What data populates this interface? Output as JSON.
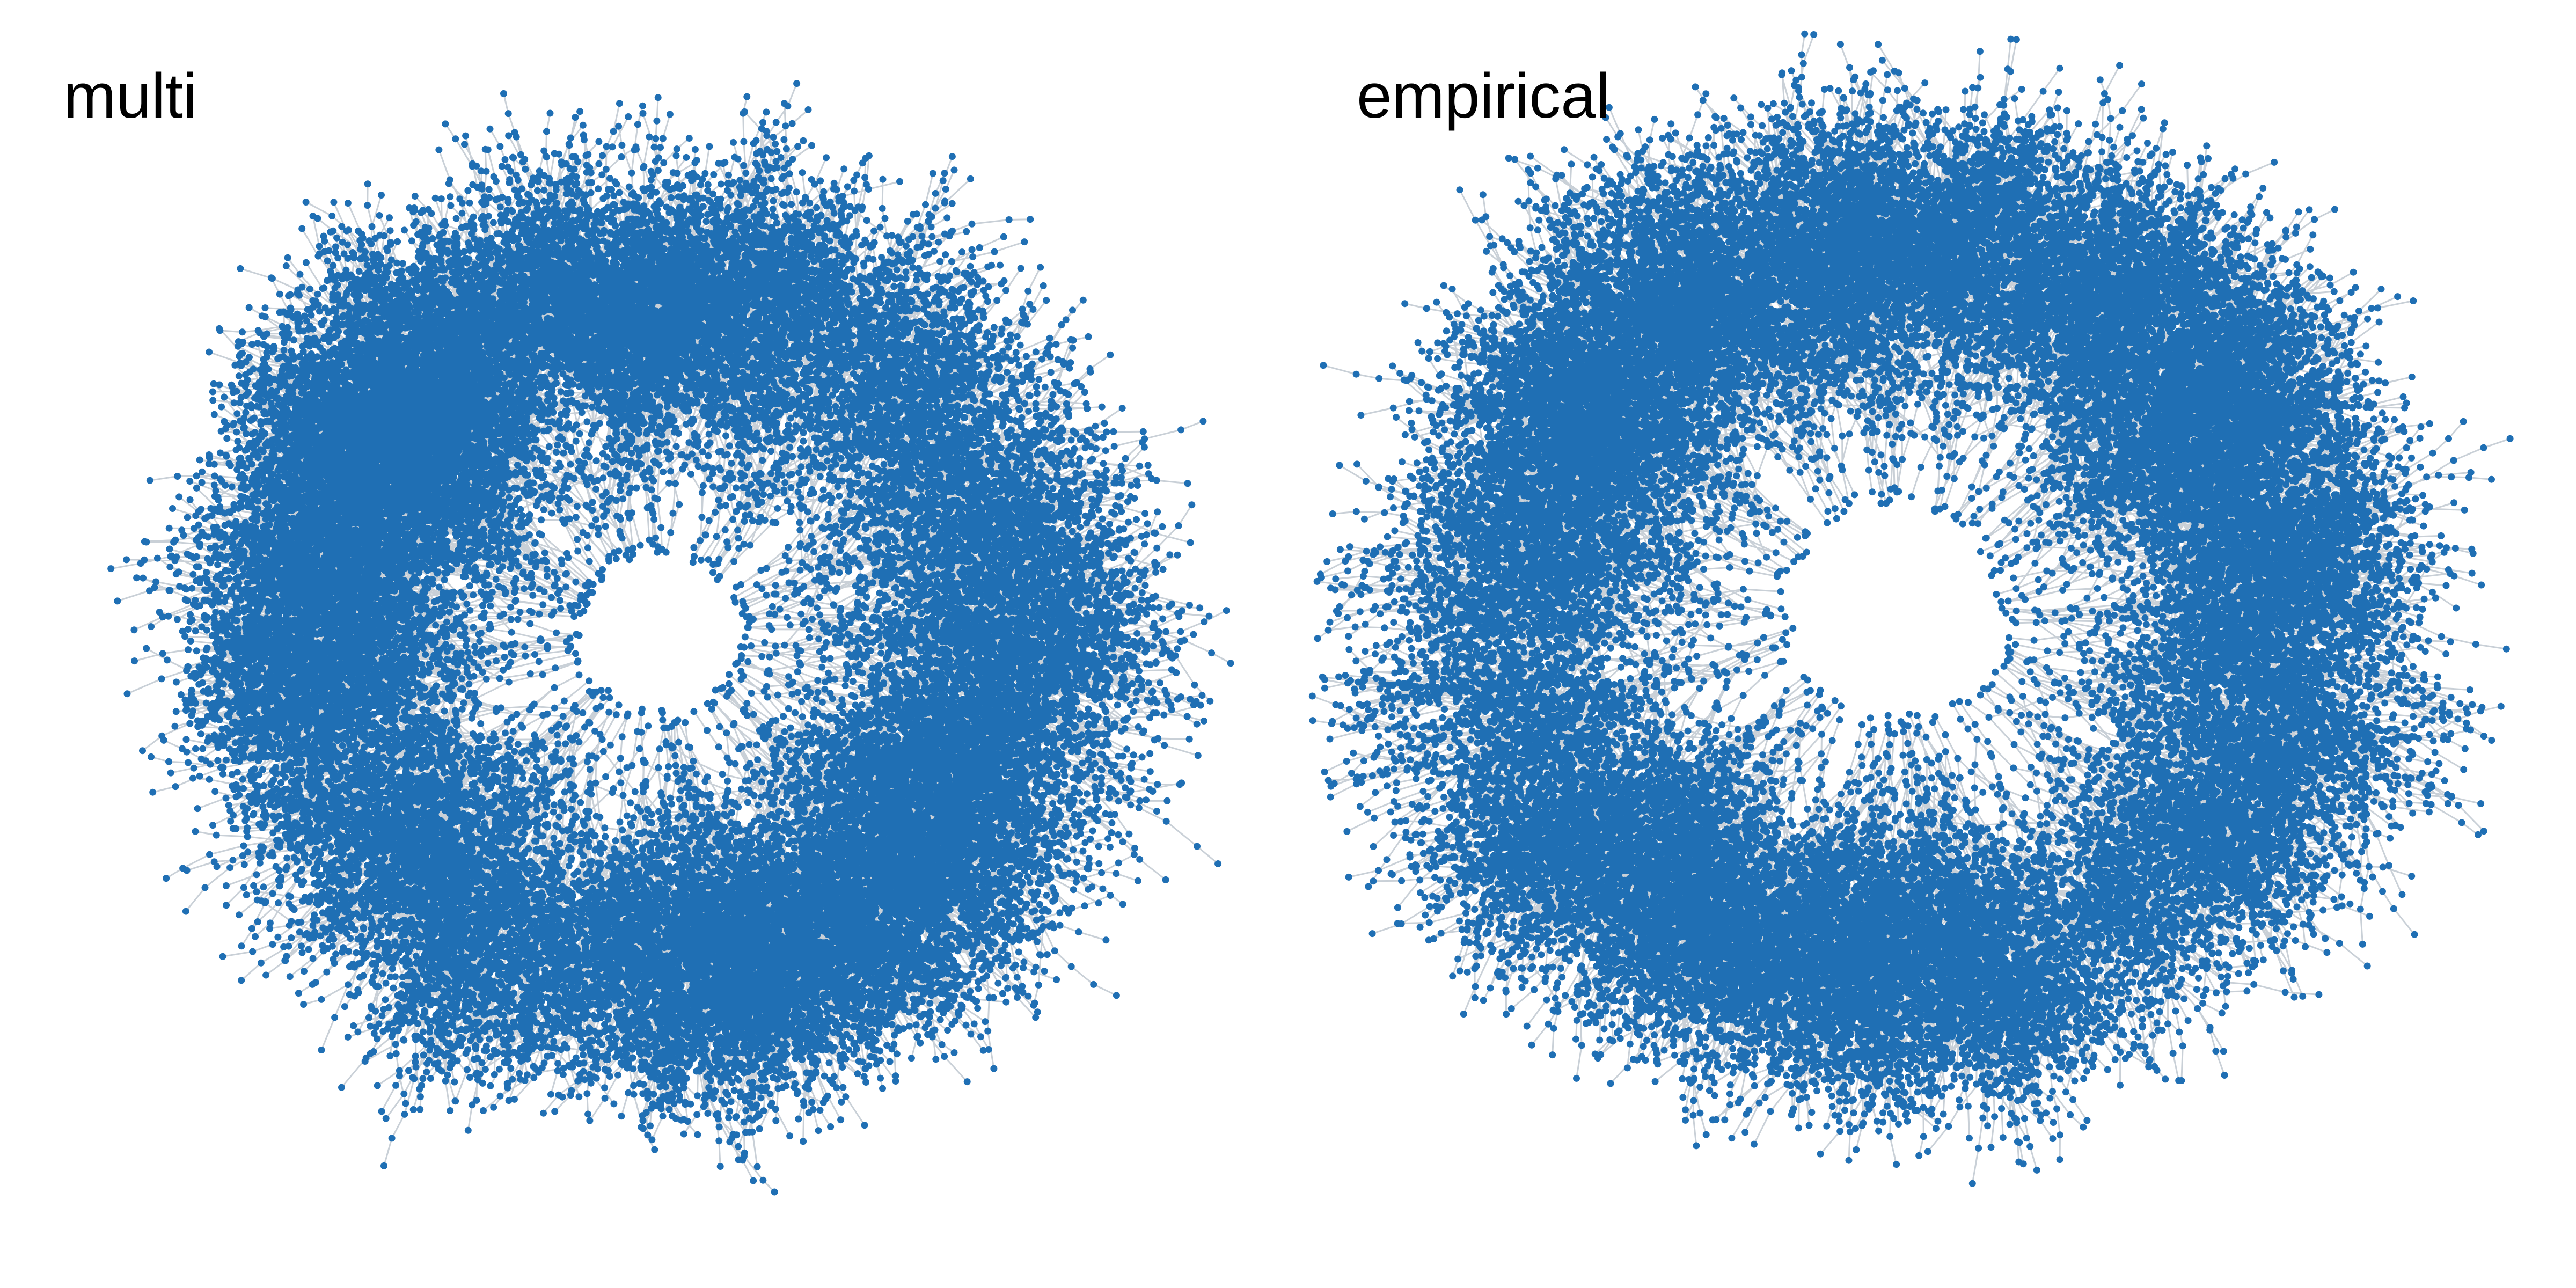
{
  "panels": [
    {
      "label": "multi"
    },
    {
      "label": "empirical"
    }
  ],
  "style": {
    "node_color": "#1f6fb4",
    "edge_color": "#c9d0d7",
    "background": "#ffffff"
  }
}
